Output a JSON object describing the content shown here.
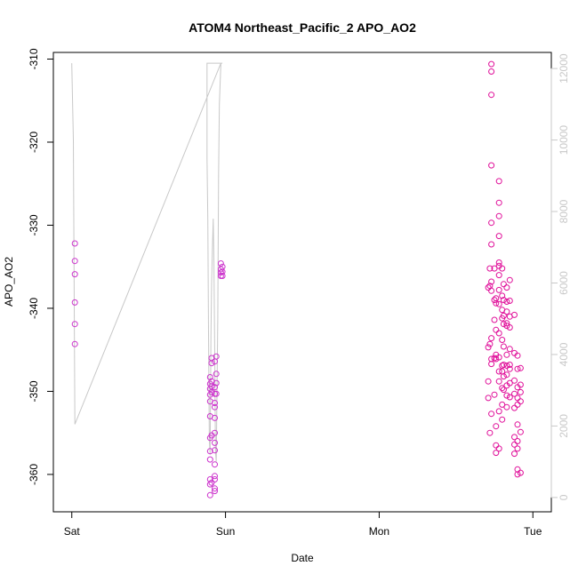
{
  "chart_data": {
    "type": "scatter",
    "title": "ATOM4 Northeast_Pacific_2 APO_AO2",
    "xlabel": "Date",
    "ylabel": "APO_AO2",
    "x_axis_kind": "time",
    "x_ticks": [
      {
        "label": "Sat",
        "t": 0.0
      },
      {
        "label": "Sun",
        "t": 1.0
      },
      {
        "label": "Mon",
        "t": 2.0
      },
      {
        "label": "Tue",
        "t": 3.0
      }
    ],
    "xlim": [
      -0.12,
      3.12
    ],
    "ylim": [
      -364.5,
      -309.2
    ],
    "y_ticks": [
      -310,
      -320,
      -330,
      -340,
      -350,
      -360
    ],
    "right_axis": {
      "ylim": [
        -400,
        12450
      ],
      "ticks": [
        0,
        2000,
        4000,
        6000,
        8000,
        10000,
        12000
      ],
      "color": "#c8c8c8"
    },
    "point_color": "#e0109a",
    "point_color_alt": "#cc33cc",
    "line_color": "#c8c8c8",
    "grid": false,
    "series": [
      {
        "values": [
          [
            0.02,
            -332.2
          ],
          [
            0.02,
            -334.3
          ],
          [
            0.02,
            -335.9
          ],
          [
            0.02,
            -339.3
          ],
          [
            0.02,
            -341.9
          ],
          [
            0.02,
            -344.3
          ],
          [
            0.9,
            -348.3
          ],
          [
            0.9,
            -349.1
          ],
          [
            0.9,
            -349.7
          ],
          [
            0.9,
            -350.4
          ],
          [
            0.9,
            -351.2
          ],
          [
            0.9,
            -353.0
          ],
          [
            0.9,
            -355.6
          ],
          [
            0.9,
            -357.2
          ],
          [
            0.9,
            -358.2
          ],
          [
            0.9,
            -360.6
          ],
          [
            0.9,
            -361.2
          ],
          [
            0.9,
            -362.5
          ],
          [
            0.91,
            -346.0
          ],
          [
            0.91,
            -346.6
          ],
          [
            0.91,
            -348.8
          ],
          [
            0.91,
            -349.4
          ],
          [
            0.91,
            -350.1
          ],
          [
            0.91,
            -355.3
          ],
          [
            0.91,
            -361.0
          ],
          [
            0.93,
            -346.4
          ],
          [
            0.93,
            -349.5
          ],
          [
            0.93,
            -350.3
          ],
          [
            0.93,
            -351.4
          ],
          [
            0.93,
            -351.9
          ],
          [
            0.93,
            -353.2
          ],
          [
            0.93,
            -355.0
          ],
          [
            0.93,
            -356.2
          ],
          [
            0.93,
            -357.1
          ],
          [
            0.93,
            -358.8
          ],
          [
            0.93,
            -360.2
          ],
          [
            0.93,
            -360.6
          ],
          [
            0.93,
            -361.7
          ],
          [
            0.93,
            -362.0
          ],
          [
            0.94,
            -345.8
          ],
          [
            0.94,
            -347.9
          ],
          [
            0.94,
            -349.0
          ],
          [
            0.94,
            -350.3
          ],
          [
            0.97,
            -334.6
          ],
          [
            0.97,
            -335.3
          ],
          [
            0.97,
            -335.7
          ],
          [
            0.97,
            -336.1
          ],
          [
            0.98,
            -335.0
          ],
          [
            0.98,
            -335.6
          ],
          [
            0.98,
            -336.1
          ],
          [
            2.71,
            -337.5
          ],
          [
            2.71,
            -344.7
          ],
          [
            2.71,
            -348.8
          ],
          [
            2.71,
            -350.8
          ],
          [
            2.72,
            -335.2
          ],
          [
            2.72,
            -337.3
          ],
          [
            2.72,
            -344.3
          ],
          [
            2.72,
            -355.0
          ],
          [
            2.73,
            -310.6
          ],
          [
            2.73,
            -311.5
          ],
          [
            2.73,
            -314.3
          ],
          [
            2.73,
            -322.8
          ],
          [
            2.73,
            -329.7
          ],
          [
            2.73,
            -332.3
          ],
          [
            2.73,
            -336.8
          ],
          [
            2.73,
            -337.9
          ],
          [
            2.73,
            -343.6
          ],
          [
            2.73,
            -346.1
          ],
          [
            2.73,
            -346.7
          ],
          [
            2.73,
            -352.7
          ],
          [
            2.75,
            -335.2
          ],
          [
            2.75,
            -339.0
          ],
          [
            2.75,
            -341.4
          ],
          [
            2.75,
            -346.0
          ],
          [
            2.75,
            -350.4
          ],
          [
            2.76,
            -338.8
          ],
          [
            2.76,
            -339.4
          ],
          [
            2.76,
            -342.6
          ],
          [
            2.76,
            -345.6
          ],
          [
            2.76,
            -346.1
          ],
          [
            2.76,
            -354.2
          ],
          [
            2.76,
            -356.5
          ],
          [
            2.76,
            -357.4
          ],
          [
            2.78,
            -324.7
          ],
          [
            2.78,
            -327.3
          ],
          [
            2.78,
            -328.9
          ],
          [
            2.78,
            -331.3
          ],
          [
            2.78,
            -334.5
          ],
          [
            2.78,
            -334.9
          ],
          [
            2.78,
            -336.0
          ],
          [
            2.78,
            -337.8
          ],
          [
            2.78,
            -339.5
          ],
          [
            2.78,
            -343.0
          ],
          [
            2.78,
            -345.9
          ],
          [
            2.78,
            -347.6
          ],
          [
            2.78,
            -348.8
          ],
          [
            2.78,
            -352.4
          ],
          [
            2.78,
            -356.9
          ],
          [
            2.8,
            -335.2
          ],
          [
            2.8,
            -338.5
          ],
          [
            2.8,
            -340.2
          ],
          [
            2.8,
            -341.2
          ],
          [
            2.8,
            -343.8
          ],
          [
            2.8,
            -346.9
          ],
          [
            2.8,
            -347.6
          ],
          [
            2.8,
            -349.6
          ],
          [
            2.8,
            -351.6
          ],
          [
            2.8,
            -353.4
          ],
          [
            2.81,
            -337.1
          ],
          [
            2.81,
            -339.0
          ],
          [
            2.81,
            -340.9
          ],
          [
            2.81,
            -341.9
          ],
          [
            2.81,
            -344.6
          ],
          [
            2.81,
            -346.8
          ],
          [
            2.81,
            -348.2
          ],
          [
            2.81,
            -349.8
          ],
          [
            2.83,
            -337.5
          ],
          [
            2.83,
            -339.2
          ],
          [
            2.83,
            -340.4
          ],
          [
            2.83,
            -341.8
          ],
          [
            2.83,
            -342.1
          ],
          [
            2.83,
            -345.6
          ],
          [
            2.83,
            -346.9
          ],
          [
            2.83,
            -348.0
          ],
          [
            2.83,
            -349.3
          ],
          [
            2.83,
            -350.5
          ],
          [
            2.83,
            -351.9
          ],
          [
            2.85,
            -336.6
          ],
          [
            2.85,
            -339.1
          ],
          [
            2.85,
            -341.0
          ],
          [
            2.85,
            -342.3
          ],
          [
            2.85,
            -344.9
          ],
          [
            2.85,
            -346.8
          ],
          [
            2.85,
            -347.3
          ],
          [
            2.85,
            -349.0
          ],
          [
            2.85,
            -350.7
          ],
          [
            2.88,
            -340.8
          ],
          [
            2.88,
            -345.4
          ],
          [
            2.88,
            -348.7
          ],
          [
            2.88,
            -350.3
          ],
          [
            2.88,
            -352.0
          ],
          [
            2.88,
            -355.5
          ],
          [
            2.88,
            -356.4
          ],
          [
            2.88,
            -357.5
          ],
          [
            2.9,
            -345.7
          ],
          [
            2.9,
            -347.3
          ],
          [
            2.9,
            -349.5
          ],
          [
            2.9,
            -350.8
          ],
          [
            2.9,
            -351.6
          ],
          [
            2.9,
            -354.0
          ],
          [
            2.9,
            -356.0
          ],
          [
            2.9,
            -356.9
          ],
          [
            2.9,
            -359.4
          ],
          [
            2.9,
            -360.0
          ],
          [
            2.92,
            -347.2
          ],
          [
            2.92,
            -349.2
          ],
          [
            2.92,
            -350.1
          ],
          [
            2.92,
            -351.2
          ],
          [
            2.92,
            -354.9
          ],
          [
            2.92,
            -359.8
          ]
        ]
      }
    ],
    "right_axis_series": [
      {
        "values": [
          [
            0.0,
            12150
          ],
          [
            0.01,
            10000
          ],
          [
            0.02,
            2050
          ],
          [
            0.97,
            12150
          ],
          [
            0.98,
            12150
          ],
          [
            0.88,
            12150
          ],
          [
            0.88,
            9500
          ],
          [
            0.885,
            7800
          ],
          [
            0.89,
            4200
          ],
          [
            0.895,
            1600
          ],
          [
            0.9,
            1200
          ],
          [
            0.905,
            4500
          ],
          [
            0.91,
            6000
          ],
          [
            0.915,
            7000
          ],
          [
            0.92,
            7800
          ],
          [
            0.925,
            6500
          ],
          [
            0.93,
            4000
          ],
          [
            0.935,
            1300
          ],
          [
            0.94,
            1000
          ],
          [
            0.95,
            5000
          ],
          [
            0.955,
            9000
          ],
          [
            0.96,
            11000
          ],
          [
            0.97,
            12150
          ]
        ]
      }
    ]
  }
}
